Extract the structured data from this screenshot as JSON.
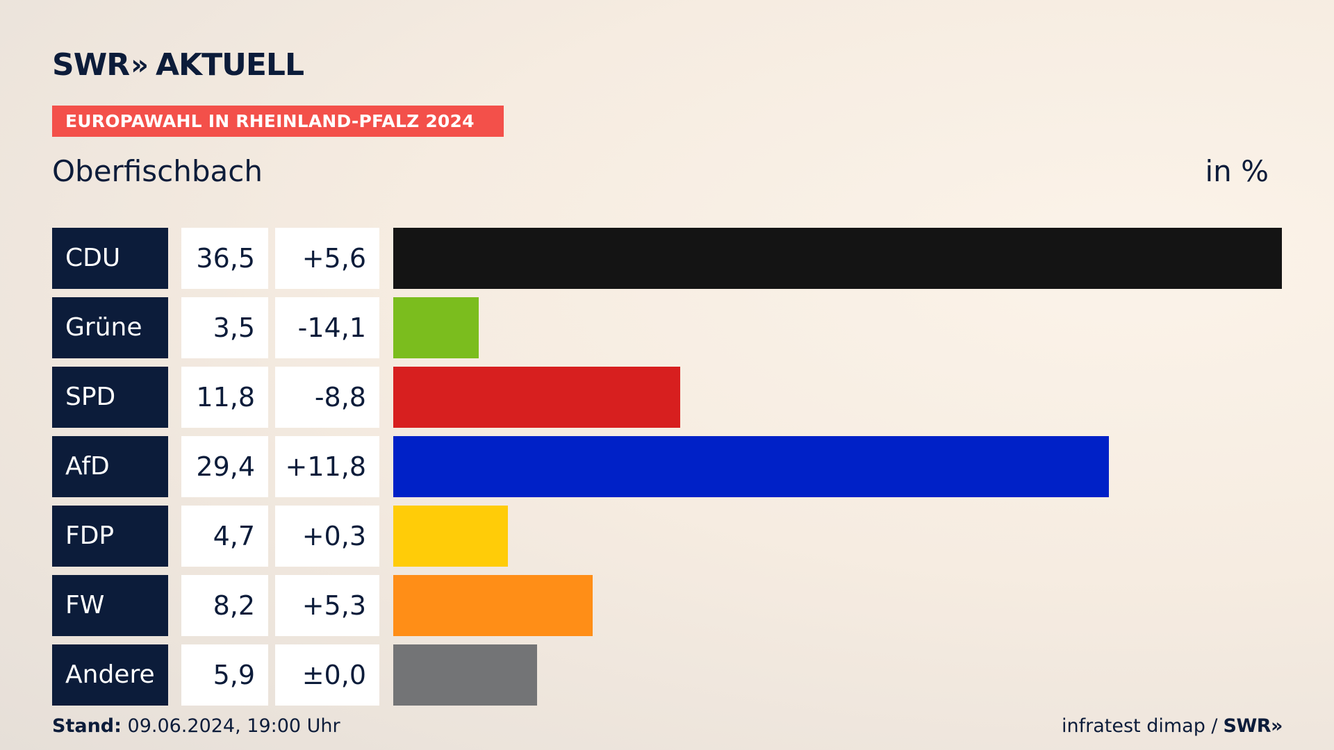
{
  "header": {
    "logo_main": "SWR",
    "logo_chevron": "»",
    "logo_sub": "AKTUELL",
    "kicker": "EUROPAWAHL IN RHEINLAND-PFALZ 2024",
    "place": "Oberfischbach",
    "unit": "in %"
  },
  "footer": {
    "stand_label": "Stand:",
    "stand_value": "09.06.2024, 19:00 Uhr",
    "source": "infratest dimap /",
    "source_brand": "SWR»"
  },
  "colors": {
    "CDU": "#141414",
    "Grüne": "#7bbd1e",
    "SPD": "#d71f1f",
    "AfD": "#0021c7",
    "FDP": "#ffcc08",
    "FW": "#ff8e17",
    "Andere": "#737476"
  },
  "chart_data": {
    "type": "bar",
    "title": "Oberfischbach",
    "ylabel": "in %",
    "categories": [
      "CDU",
      "Grüne",
      "SPD",
      "AfD",
      "FDP",
      "FW",
      "Andere"
    ],
    "values": [
      36.5,
      3.5,
      11.8,
      29.4,
      4.7,
      8.2,
      5.9
    ],
    "value_labels": [
      "36,5",
      "3,5",
      "11,8",
      "29,4",
      "4,7",
      "8,2",
      "5,9"
    ],
    "diff_labels": [
      "+5,6",
      "-14,1",
      "-8,8",
      "+11,8",
      "+0,3",
      "+5,3",
      "±0,0"
    ],
    "xlim": [
      0,
      36.5
    ]
  }
}
